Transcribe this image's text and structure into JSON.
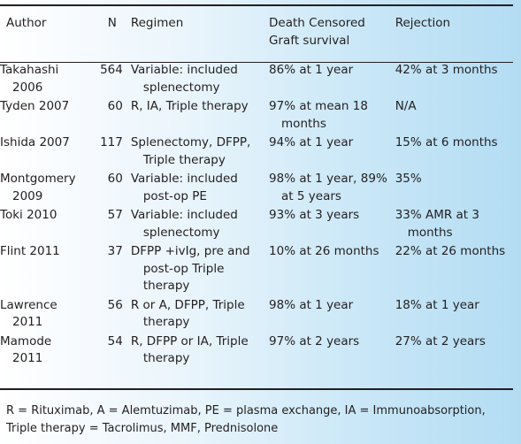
{
  "table": {
    "headers": {
      "author": "Author",
      "n": "N",
      "regimen": "Regimen",
      "survival": "Death Censored Graft survival",
      "rejection": "Rejection"
    },
    "rows": [
      {
        "author": "Takahashi 2006",
        "n": "564",
        "regimen": "Variable: included splenectomy",
        "survival": "86% at 1 year",
        "rejection": "42% at 3 months"
      },
      {
        "author": "Tyden 2007",
        "n": "60",
        "regimen": "R, IA, Triple therapy",
        "survival": "97% at mean 18 months",
        "rejection": "N/A"
      },
      {
        "author": "Ishida 2007",
        "n": "117",
        "regimen": "Splenectomy, DFPP, Triple therapy",
        "survival": "94% at 1 year",
        "rejection": "15% at 6 months"
      },
      {
        "author": "Montgomery 2009",
        "n": "60",
        "regimen": "Variable: included post-op PE",
        "survival": "98% at 1 year, 89% at 5 years",
        "rejection": "35%"
      },
      {
        "author": "Toki 2010",
        "n": "57",
        "regimen": "Variable: included splenectomy",
        "survival": "93% at 3 years",
        "rejection": "33% AMR at 3 months"
      },
      {
        "author": "Flint 2011",
        "n": "37",
        "regimen": "DFPP +ivIg, pre and post-op Triple therapy",
        "survival": "10% at 26 months",
        "rejection": "22% at 26 months"
      },
      {
        "author": "Lawrence 2011",
        "n": "56",
        "regimen": "R or A, DFPP, Triple therapy",
        "survival": "98% at 1 year",
        "rejection": "18% at 1 year"
      },
      {
        "author": "Mamode 2011",
        "n": "54",
        "regimen": "R, DFPP or IA, Triple therapy",
        "survival": "97% at 2 years",
        "rejection": "27% at 2 years"
      }
    ]
  },
  "footnote": "R = Rituximab, A = Alemtuzimab, PE = plasma exchange, IA = Immunoabsorption, Triple therapy = Tacrolimus, MMF, Prednisolone"
}
